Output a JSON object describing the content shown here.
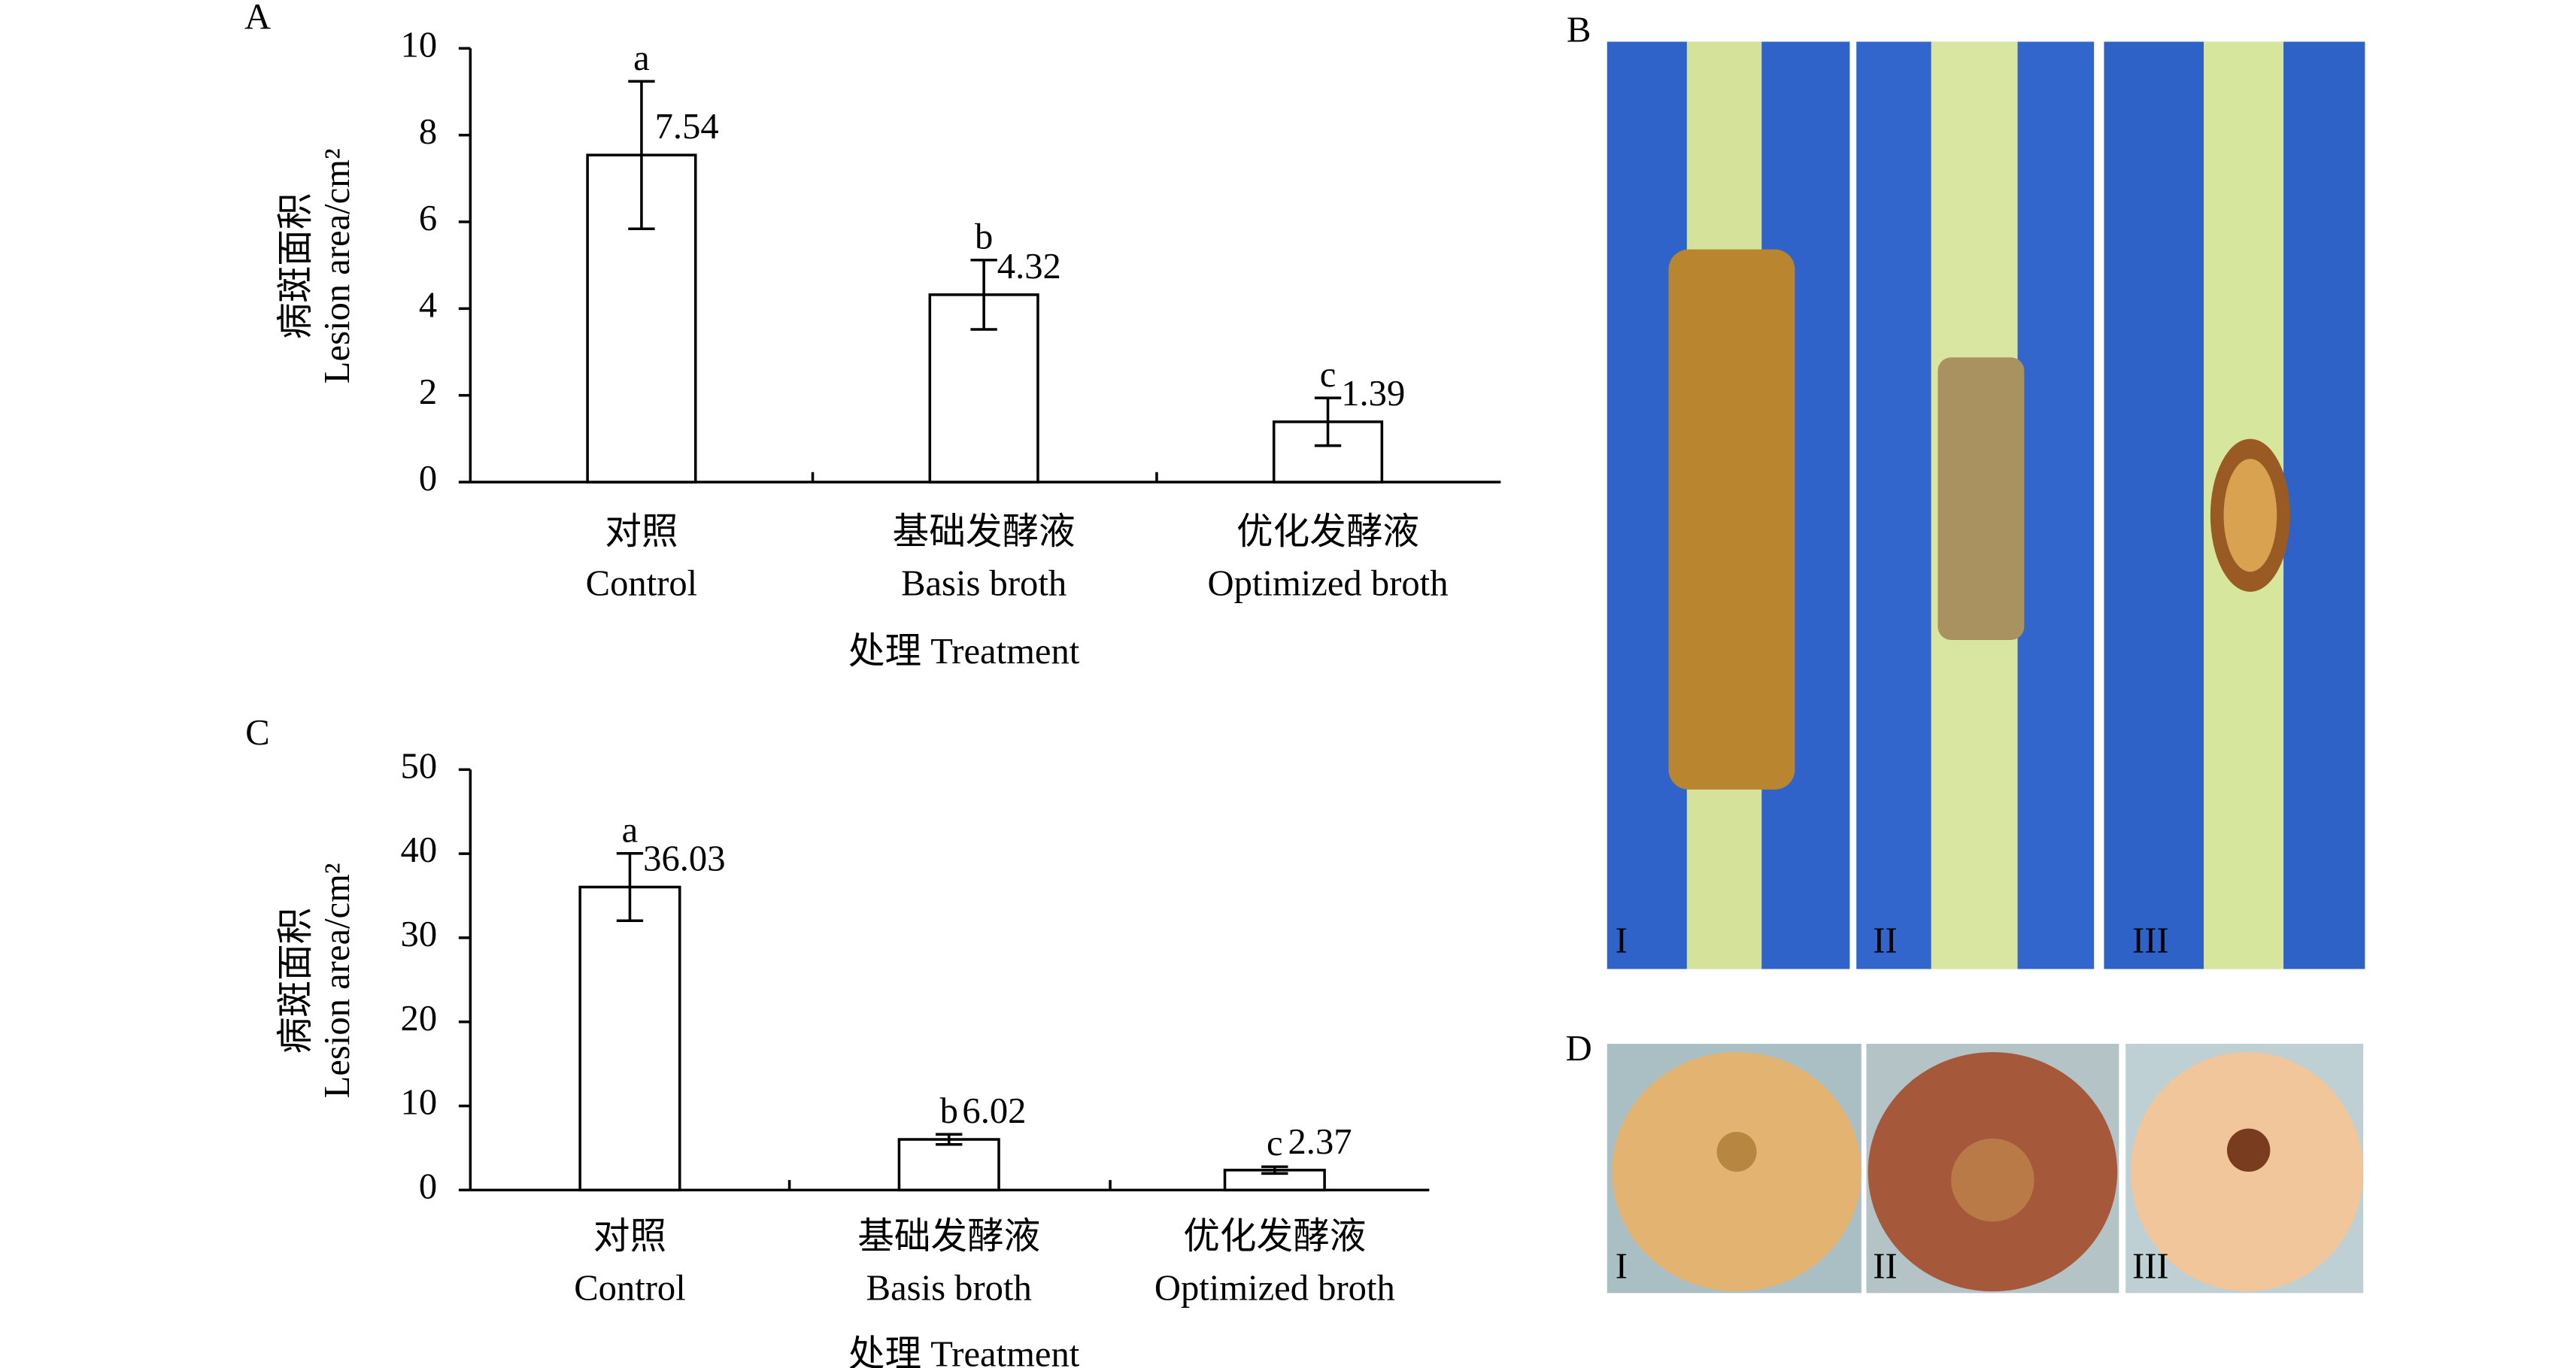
{
  "chart_data": [
    {
      "type": "bar",
      "panel": "A",
      "ylabel": [
        "病斑面积",
        "Lesion area/cm²"
      ],
      "xlabel": "处理 Treatment",
      "categories": [
        [
          "对照",
          "Control"
        ],
        [
          "基础发酵液",
          "Basis broth"
        ],
        [
          "优化发酵液",
          "Optimized broth"
        ]
      ],
      "values": [
        7.54,
        4.32,
        1.39
      ],
      "errors": [
        1.7,
        0.8,
        0.55
      ],
      "letters": [
        "a",
        "b",
        "c"
      ],
      "color": "#ffffff",
      "ylim": [
        0,
        10
      ],
      "yticks": [
        0,
        2,
        4,
        6,
        8,
        10
      ]
    },
    {
      "type": "bar",
      "panel": "C",
      "ylabel": [
        "病斑面积",
        "Lesion area/cm²"
      ],
      "xlabel": "处理 Treatment",
      "categories": [
        [
          "对照",
          "Control"
        ],
        [
          "基础发酵液",
          "Basis broth"
        ],
        [
          "优化发酵液",
          "Optimized broth"
        ]
      ],
      "values": [
        36.03,
        6.02,
        2.37
      ],
      "errors": [
        4,
        0.6,
        0.4
      ],
      "letters": [
        "a",
        "b",
        "c"
      ],
      "color": "#ffffff",
      "ylim": [
        0,
        50
      ],
      "yticks": [
        0,
        10,
        20,
        30,
        40,
        50
      ]
    }
  ],
  "photos": [
    {
      "panel": "B",
      "captions": [
        "I",
        "II",
        "III"
      ]
    },
    {
      "panel": "D",
      "captions": [
        "I",
        "II",
        "III"
      ]
    }
  ]
}
